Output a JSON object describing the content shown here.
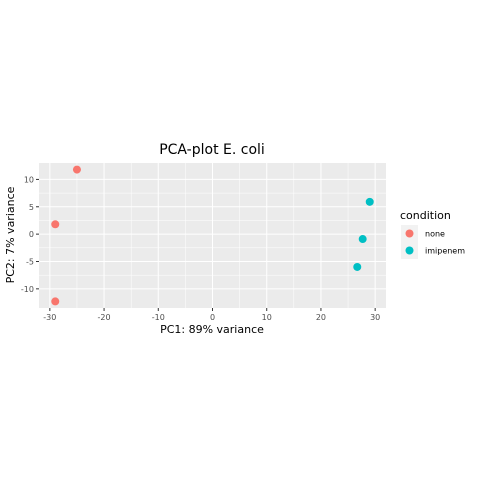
{
  "chart_data": {
    "type": "scatter",
    "title": "PCA-plot E. coli",
    "xlabel": "PC1: 89% variance",
    "ylabel": "PC2: 7% variance",
    "xlim": [
      -32,
      32
    ],
    "ylim": [
      -13.5,
      13
    ],
    "x_ticks": [
      -30,
      -20,
      -10,
      0,
      10,
      20,
      30
    ],
    "y_ticks": [
      -10,
      -5,
      0,
      5,
      10
    ],
    "grid": true,
    "legend": {
      "title": "condition",
      "placement": "right"
    },
    "series": [
      {
        "name": "none",
        "color": "#F8766D",
        "points": [
          {
            "x": -25,
            "y": 11.8
          },
          {
            "x": -29,
            "y": 1.8
          },
          {
            "x": -29,
            "y": -12.3
          }
        ]
      },
      {
        "name": "imipenem",
        "color": "#00BFC4",
        "points": [
          {
            "x": 29,
            "y": 5.9
          },
          {
            "x": 27.7,
            "y": -0.9
          },
          {
            "x": 26.7,
            "y": -6
          }
        ]
      }
    ]
  }
}
